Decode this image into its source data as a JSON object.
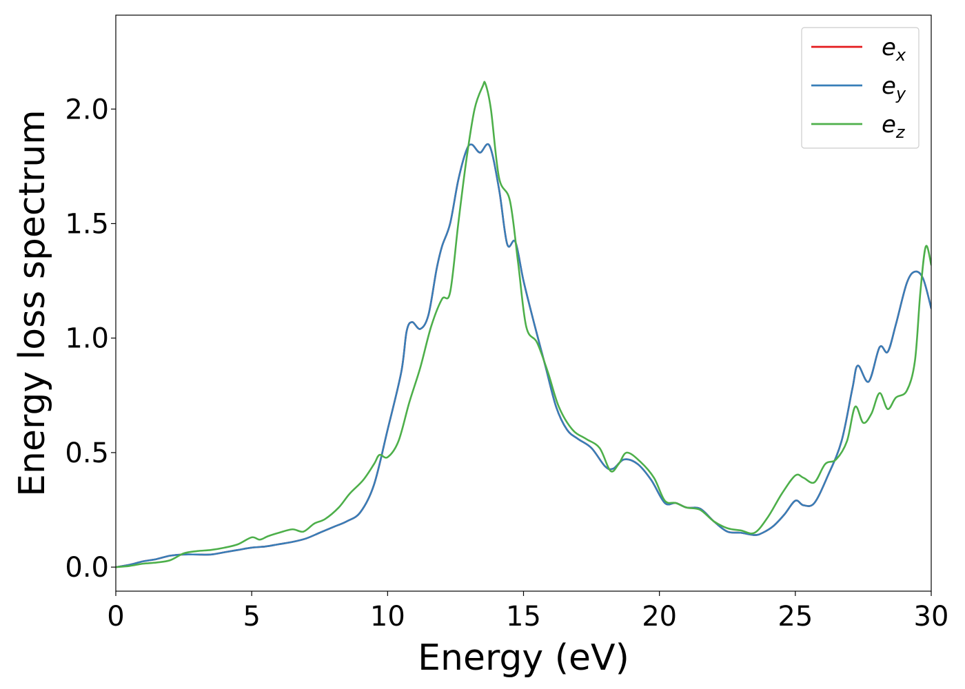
{
  "chart_data": {
    "type": "line",
    "xlabel": "Energy (eV)",
    "ylabel": "Energy loss spectrum",
    "xlim": [
      0,
      30
    ],
    "ylim": [
      -0.105,
      2.41
    ],
    "x_ticks": [
      0,
      5,
      10,
      15,
      20,
      25,
      30
    ],
    "x_tick_labels": [
      "0",
      "5",
      "10",
      "15",
      "20",
      "25",
      "30"
    ],
    "y_ticks": [
      0.0,
      0.5,
      1.0,
      1.5,
      2.0
    ],
    "y_tick_labels": [
      "0.0",
      "0.5",
      "1.0",
      "1.5",
      "2.0"
    ],
    "grid": false,
    "legend_position": "top-right",
    "series": [
      {
        "name": "e_x",
        "label_base": "e",
        "label_sub": "x",
        "color": "#e41a1c",
        "x": [
          0,
          0.5,
          1,
          1.5,
          2,
          2.5,
          3,
          3.5,
          4,
          4.5,
          5,
          5.5,
          6,
          6.5,
          7,
          7.5,
          8,
          8.5,
          9,
          9.5,
          10,
          10.5,
          10.7,
          10.9,
          11.2,
          11.5,
          11.8,
          12,
          12.3,
          12.6,
          12.9,
          13.1,
          13.4,
          13.75,
          14.1,
          14.4,
          14.7,
          15,
          15.4,
          15.8,
          16.2,
          16.6,
          17,
          17.5,
          18,
          18.3,
          18.7,
          19.2,
          19.7,
          20.2,
          20.6,
          21,
          21.5,
          22,
          22.5,
          23,
          23.5,
          23.8,
          24.2,
          24.6,
          25,
          25.3,
          25.7,
          26.2,
          26.7,
          27.1,
          27.3,
          27.7,
          28.1,
          28.4,
          28.7,
          29.1,
          29.4,
          29.7,
          30
        ],
        "y": [
          0,
          0.01,
          0.025,
          0.035,
          0.05,
          0.055,
          0.055,
          0.055,
          0.065,
          0.075,
          0.085,
          0.09,
          0.1,
          0.11,
          0.125,
          0.15,
          0.175,
          0.2,
          0.24,
          0.36,
          0.6,
          0.85,
          1.03,
          1.07,
          1.04,
          1.1,
          1.3,
          1.4,
          1.5,
          1.69,
          1.82,
          1.845,
          1.81,
          1.84,
          1.65,
          1.41,
          1.42,
          1.25,
          1.06,
          0.88,
          0.7,
          0.6,
          0.56,
          0.52,
          0.44,
          0.43,
          0.47,
          0.45,
          0.38,
          0.28,
          0.28,
          0.26,
          0.255,
          0.2,
          0.155,
          0.15,
          0.14,
          0.15,
          0.18,
          0.23,
          0.29,
          0.27,
          0.28,
          0.4,
          0.55,
          0.78,
          0.88,
          0.81,
          0.96,
          0.94,
          1.06,
          1.24,
          1.29,
          1.26,
          1.13
        ]
      },
      {
        "name": "e_y",
        "label_base": "e",
        "label_sub": "y",
        "color": "#377eb8",
        "x": [
          0,
          0.5,
          1,
          1.5,
          2,
          2.5,
          3,
          3.5,
          4,
          4.5,
          5,
          5.5,
          6,
          6.5,
          7,
          7.5,
          8,
          8.5,
          9,
          9.5,
          10,
          10.5,
          10.7,
          10.9,
          11.2,
          11.5,
          11.8,
          12,
          12.3,
          12.6,
          12.9,
          13.1,
          13.4,
          13.75,
          14.1,
          14.4,
          14.7,
          15,
          15.4,
          15.8,
          16.2,
          16.6,
          17,
          17.5,
          18,
          18.3,
          18.7,
          19.2,
          19.7,
          20.2,
          20.6,
          21,
          21.5,
          22,
          22.5,
          23,
          23.5,
          23.8,
          24.2,
          24.6,
          25,
          25.3,
          25.7,
          26.2,
          26.7,
          27.1,
          27.3,
          27.7,
          28.1,
          28.4,
          28.7,
          29.1,
          29.4,
          29.7,
          30
        ],
        "y": [
          0,
          0.01,
          0.025,
          0.035,
          0.05,
          0.055,
          0.055,
          0.055,
          0.065,
          0.075,
          0.085,
          0.09,
          0.1,
          0.11,
          0.125,
          0.15,
          0.175,
          0.2,
          0.24,
          0.36,
          0.6,
          0.85,
          1.03,
          1.07,
          1.04,
          1.1,
          1.3,
          1.4,
          1.5,
          1.69,
          1.82,
          1.845,
          1.81,
          1.84,
          1.65,
          1.41,
          1.42,
          1.25,
          1.06,
          0.88,
          0.7,
          0.6,
          0.56,
          0.52,
          0.44,
          0.43,
          0.47,
          0.45,
          0.38,
          0.28,
          0.28,
          0.26,
          0.255,
          0.2,
          0.155,
          0.15,
          0.14,
          0.15,
          0.18,
          0.23,
          0.29,
          0.27,
          0.28,
          0.4,
          0.55,
          0.78,
          0.88,
          0.81,
          0.96,
          0.94,
          1.06,
          1.24,
          1.29,
          1.26,
          1.13
        ]
      },
      {
        "name": "e_z",
        "label_base": "e",
        "label_sub": "z",
        "color": "#4daf4a",
        "x": [
          0,
          0.5,
          1,
          1.5,
          2,
          2.5,
          3,
          3.5,
          4,
          4.5,
          5,
          5.3,
          5.6,
          6,
          6.5,
          6.9,
          7.3,
          7.7,
          8.2,
          8.6,
          9.1,
          9.5,
          9.7,
          10,
          10.4,
          10.8,
          11.2,
          11.6,
          12,
          12.3,
          12.6,
          12.9,
          13.2,
          13.5,
          13.6,
          13.8,
          14.1,
          14.5,
          14.8,
          15.1,
          15.5,
          15.9,
          16.3,
          16.8,
          17.3,
          17.8,
          18.2,
          18.5,
          18.8,
          19.3,
          19.8,
          20.2,
          20.6,
          21,
          21.5,
          22,
          22.5,
          23,
          23.5,
          24,
          24.5,
          25,
          25.3,
          25.7,
          26.1,
          26.5,
          26.9,
          27.2,
          27.5,
          27.8,
          28.1,
          28.4,
          28.7,
          29.1,
          29.4,
          29.6,
          29.8,
          30
        ],
        "y": [
          0,
          0.005,
          0.015,
          0.02,
          0.03,
          0.06,
          0.07,
          0.075,
          0.085,
          0.1,
          0.13,
          0.12,
          0.135,
          0.15,
          0.165,
          0.155,
          0.19,
          0.21,
          0.26,
          0.32,
          0.38,
          0.45,
          0.49,
          0.48,
          0.55,
          0.72,
          0.87,
          1.05,
          1.17,
          1.2,
          1.5,
          1.78,
          2.0,
          2.1,
          2.11,
          2.0,
          1.7,
          1.6,
          1.33,
          1.05,
          0.98,
          0.85,
          0.7,
          0.6,
          0.56,
          0.52,
          0.42,
          0.45,
          0.5,
          0.46,
          0.39,
          0.29,
          0.28,
          0.26,
          0.25,
          0.2,
          0.17,
          0.16,
          0.15,
          0.22,
          0.32,
          0.4,
          0.39,
          0.37,
          0.45,
          0.47,
          0.55,
          0.7,
          0.63,
          0.67,
          0.76,
          0.69,
          0.74,
          0.77,
          0.9,
          1.2,
          1.4,
          1.32
        ]
      }
    ]
  }
}
